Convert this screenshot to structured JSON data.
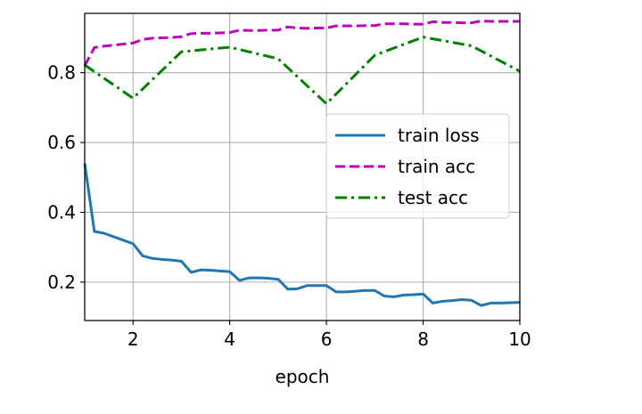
{
  "chart_data": {
    "type": "line",
    "title": "",
    "xlabel": "epoch",
    "ylabel": "",
    "xlim": [
      1,
      10
    ],
    "ylim": [
      0.09,
      0.97
    ],
    "xticks": [
      2,
      4,
      6,
      8,
      10
    ],
    "xtick_labels": [
      "2",
      "4",
      "6",
      "8",
      "10"
    ],
    "yticks": [
      0.2,
      0.4,
      0.6,
      0.8
    ],
    "ytick_labels": [
      "0.2",
      "0.4",
      "0.6",
      "0.8"
    ],
    "grid": true,
    "legend_position": "center-right",
    "series": [
      {
        "name": "train loss",
        "color": "#1f77b4",
        "style": "solid",
        "x": [
          1.0,
          1.2,
          1.4,
          1.6,
          1.8,
          2.0,
          2.2,
          2.4,
          2.6,
          2.8,
          3.0,
          3.2,
          3.4,
          3.6,
          3.8,
          4.0,
          4.2,
          4.4,
          4.6,
          4.8,
          5.0,
          5.2,
          5.4,
          5.6,
          5.8,
          6.0,
          6.2,
          6.4,
          6.6,
          6.8,
          7.0,
          7.2,
          7.4,
          7.6,
          7.8,
          8.0,
          8.2,
          8.4,
          8.6,
          8.8,
          9.0,
          9.2,
          9.4,
          9.6,
          9.8,
          10.0
        ],
        "values": [
          0.54,
          0.345,
          0.34,
          0.33,
          0.32,
          0.31,
          0.275,
          0.268,
          0.265,
          0.263,
          0.26,
          0.228,
          0.235,
          0.234,
          0.232,
          0.23,
          0.205,
          0.212,
          0.212,
          0.211,
          0.208,
          0.18,
          0.181,
          0.19,
          0.19,
          0.19,
          0.172,
          0.172,
          0.174,
          0.176,
          0.176,
          0.16,
          0.158,
          0.163,
          0.164,
          0.166,
          0.14,
          0.145,
          0.147,
          0.15,
          0.148,
          0.133,
          0.14,
          0.14,
          0.141,
          0.142
        ]
      },
      {
        "name": "train acc",
        "color": "#bf00bf",
        "style": "dashed",
        "x": [
          1.0,
          1.2,
          1.4,
          1.6,
          1.8,
          2.0,
          2.2,
          2.4,
          2.6,
          2.8,
          3.0,
          3.2,
          3.4,
          3.6,
          3.8,
          4.0,
          4.2,
          4.4,
          4.6,
          4.8,
          5.0,
          5.2,
          5.4,
          5.6,
          5.8,
          6.0,
          6.2,
          6.4,
          6.6,
          6.8,
          7.0,
          7.2,
          7.4,
          7.6,
          7.8,
          8.0,
          8.2,
          8.4,
          8.6,
          8.8,
          9.0,
          9.2,
          9.4,
          9.6,
          9.8,
          10.0
        ],
        "values": [
          0.82,
          0.872,
          0.876,
          0.879,
          0.882,
          0.885,
          0.895,
          0.899,
          0.9,
          0.901,
          0.903,
          0.912,
          0.913,
          0.913,
          0.914,
          0.915,
          0.922,
          0.921,
          0.921,
          0.922,
          0.922,
          0.931,
          0.928,
          0.927,
          0.928,
          0.928,
          0.934,
          0.934,
          0.934,
          0.935,
          0.935,
          0.94,
          0.94,
          0.94,
          0.939,
          0.939,
          0.946,
          0.944,
          0.944,
          0.943,
          0.943,
          0.948,
          0.947,
          0.947,
          0.947,
          0.947
        ]
      },
      {
        "name": "test acc",
        "color": "#007f00",
        "style": "dashdot",
        "x": [
          1.0,
          2.0,
          3.0,
          4.0,
          5.0,
          6.0,
          7.0,
          8.0,
          9.0,
          10.0
        ],
        "values": [
          0.822,
          0.727,
          0.86,
          0.873,
          0.84,
          0.711,
          0.85,
          0.902,
          0.877,
          0.804
        ]
      }
    ]
  }
}
